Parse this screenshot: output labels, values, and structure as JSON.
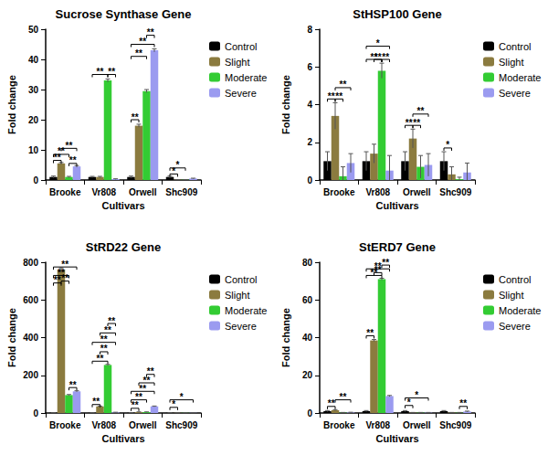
{
  "chart_data": [
    {
      "type": "bar",
      "title": "Sucrose Synthase Gene",
      "x_label": "Cultivars",
      "y_label": "Fold change",
      "categories": [
        "Brooke",
        "Vr808",
        "Orwell",
        "Shc909"
      ],
      "series": [
        {
          "name": "Control",
          "color": "#000000",
          "values": [
            1,
            1,
            1,
            1
          ],
          "errors": [
            0.3,
            0.2,
            0.3,
            0.3
          ]
        },
        {
          "name": "Slight",
          "color": "#8b7b3f",
          "values": [
            5.5,
            1,
            18,
            0.1
          ],
          "errors": [
            0.3,
            0.2,
            0.5,
            0.05
          ]
        },
        {
          "name": "Moderate",
          "color": "#33cc33",
          "values": [
            1,
            33,
            29.5,
            0.1
          ],
          "errors": [
            0.2,
            0.5,
            0.5,
            0.05
          ]
        },
        {
          "name": "Severe",
          "color": "#9b9bf0",
          "values": [
            4.5,
            0.3,
            43,
            0.5
          ],
          "errors": [
            0.3,
            0.1,
            0.5,
            0.1
          ]
        }
      ],
      "ylim": [
        0,
        50
      ],
      "yticks": [
        0,
        10,
        20,
        30,
        40,
        50
      ],
      "grid": false,
      "legend": "right",
      "annotations": [
        {
          "category": "Brooke",
          "from": "Control",
          "to": "Slight",
          "y": 6.5,
          "label": "**"
        },
        {
          "category": "Brooke",
          "from": "Control",
          "to": "Moderate",
          "y": 8.5,
          "label": "**"
        },
        {
          "category": "Brooke",
          "from": "Slight",
          "to": "Severe",
          "y": 10.5,
          "label": "**"
        },
        {
          "category": "Brooke",
          "from": "Moderate",
          "to": "Severe",
          "y": 5.5,
          "label": "**"
        },
        {
          "category": "Vr808",
          "from": "Control",
          "to": "Moderate",
          "y": 35,
          "label": "**"
        },
        {
          "category": "Vr808",
          "from": "Moderate",
          "to": "Severe",
          "y": 35,
          "label": "**"
        },
        {
          "category": "Orwell",
          "from": "Control",
          "to": "Slight",
          "y": 20,
          "label": "**"
        },
        {
          "category": "Orwell",
          "from": "Control",
          "to": "Moderate",
          "y": 41,
          "label": "**"
        },
        {
          "category": "Orwell",
          "from": "Control",
          "to": "Severe",
          "y": 45,
          "label": "**"
        },
        {
          "category": "Orwell",
          "from": "Moderate",
          "to": "Severe",
          "y": 48,
          "label": "**"
        },
        {
          "category": "Shc909",
          "from": "Control",
          "to": "Slight",
          "y": 2,
          "label": "*"
        },
        {
          "category": "Shc909",
          "from": "Control",
          "to": "Moderate",
          "y": 4,
          "label": "*"
        }
      ]
    },
    {
      "type": "bar",
      "title": "StHSP100 Gene",
      "x_label": "Cultivars",
      "y_label": "Fold change",
      "categories": [
        "Brooke",
        "Vr808",
        "Orwell",
        "Shc909"
      ],
      "series": [
        {
          "name": "Control",
          "color": "#000000",
          "values": [
            1,
            1,
            1,
            1
          ],
          "errors": [
            0.5,
            0.5,
            0.5,
            0.5
          ]
        },
        {
          "name": "Slight",
          "color": "#8b7b3f",
          "values": [
            3.4,
            1.4,
            2.2,
            0.3
          ],
          "errors": [
            0.7,
            0.5,
            0.5,
            0.4
          ]
        },
        {
          "name": "Moderate",
          "color": "#33cc33",
          "values": [
            0.2,
            5.8,
            0.7,
            0.05
          ],
          "errors": [
            0.5,
            0.4,
            0.6,
            0.1
          ]
        },
        {
          "name": "Severe",
          "color": "#9b9bf0",
          "values": [
            0.9,
            0.5,
            0.8,
            0.4
          ],
          "errors": [
            0.5,
            0.8,
            0.6,
            0.5
          ]
        }
      ],
      "ylim": [
        0,
        8
      ],
      "yticks": [
        0,
        2,
        4,
        6,
        8
      ],
      "grid": false,
      "legend": "right",
      "annotations": [
        {
          "category": "Brooke",
          "from": "Control",
          "to": "Slight",
          "y": 4.3,
          "label": "**"
        },
        {
          "category": "Brooke",
          "from": "Slight",
          "to": "Moderate",
          "y": 4.3,
          "label": "**"
        },
        {
          "category": "Brooke",
          "from": "Slight",
          "to": "Severe",
          "y": 4.9,
          "label": "**"
        },
        {
          "category": "Vr808",
          "from": "Control",
          "to": "Moderate",
          "y": 6.4,
          "label": "**"
        },
        {
          "category": "Vr808",
          "from": "Slight",
          "to": "Moderate",
          "y": 6.4,
          "label": "**"
        },
        {
          "category": "Vr808",
          "from": "Moderate",
          "to": "Severe",
          "y": 6.4,
          "label": "**"
        },
        {
          "category": "Vr808",
          "from": "Control",
          "to": "Severe",
          "y": 7.1,
          "label": "*"
        },
        {
          "category": "Orwell",
          "from": "Control",
          "to": "Slight",
          "y": 2.9,
          "label": "**"
        },
        {
          "category": "Orwell",
          "from": "Slight",
          "to": "Moderate",
          "y": 2.9,
          "label": "**"
        },
        {
          "category": "Orwell",
          "from": "Slight",
          "to": "Severe",
          "y": 3.5,
          "label": "**"
        },
        {
          "category": "Shc909",
          "from": "Control",
          "to": "Slight",
          "y": 1.7,
          "label": "*"
        }
      ]
    },
    {
      "type": "bar",
      "title": "StRD22 Gene",
      "x_label": "Cultivars",
      "y_label": "Fold change",
      "categories": [
        "Brooke",
        "Vr808",
        "Orwell",
        "Shc909"
      ],
      "series": [
        {
          "name": "Control",
          "color": "#000000",
          "values": [
            1,
            1,
            1,
            1
          ],
          "errors": [
            1,
            1,
            1,
            1
          ]
        },
        {
          "name": "Slight",
          "color": "#8b7b3f",
          "values": [
            760,
            35,
            5,
            1
          ],
          "errors": [
            10,
            2,
            1,
            0.5
          ]
        },
        {
          "name": "Moderate",
          "color": "#33cc33",
          "values": [
            95,
            255,
            5,
            1
          ],
          "errors": [
            3,
            3,
            1,
            0.5
          ]
        },
        {
          "name": "Severe",
          "color": "#9b9bf0",
          "values": [
            115,
            3,
            35,
            1
          ],
          "errors": [
            3,
            1,
            2,
            0.5
          ]
        }
      ],
      "ylim": [
        0,
        800
      ],
      "yticks": [
        0,
        200,
        400,
        600,
        800
      ],
      "grid": false,
      "legend": "right",
      "annotations": [
        {
          "category": "Brooke",
          "from": "Control",
          "to": "Slight",
          "y": 690,
          "label": "**"
        },
        {
          "category": "Brooke",
          "from": "Control",
          "to": "Moderate",
          "y": 730,
          "label": "**"
        },
        {
          "category": "Brooke",
          "from": "Slight",
          "to": "Moderate",
          "y": 700,
          "label": "**"
        },
        {
          "category": "Brooke",
          "from": "Control",
          "to": "Severe",
          "y": 775,
          "label": "**"
        },
        {
          "category": "Brooke",
          "from": "Moderate",
          "to": "Severe",
          "y": 135,
          "label": "**"
        },
        {
          "category": "Vr808",
          "from": "Control",
          "to": "Slight",
          "y": 45,
          "label": "**"
        },
        {
          "category": "Vr808",
          "from": "Control",
          "to": "Moderate",
          "y": 275,
          "label": "**"
        },
        {
          "category": "Vr808",
          "from": "Slight",
          "to": "Moderate",
          "y": 325,
          "label": "**"
        },
        {
          "category": "Vr808",
          "from": "Control",
          "to": "Severe",
          "y": 375,
          "label": "**"
        },
        {
          "category": "Vr808",
          "from": "Slight",
          "to": "Severe",
          "y": 425,
          "label": "**"
        },
        {
          "category": "Vr808",
          "from": "Moderate",
          "to": "Severe",
          "y": 475,
          "label": "**"
        },
        {
          "category": "Orwell",
          "from": "Control",
          "to": "Slight",
          "y": 25,
          "label": "**"
        },
        {
          "category": "Orwell",
          "from": "Control",
          "to": "Moderate",
          "y": 70,
          "label": "**"
        },
        {
          "category": "Orwell",
          "from": "Control",
          "to": "Severe",
          "y": 115,
          "label": "**"
        },
        {
          "category": "Orwell",
          "from": "Slight",
          "to": "Severe",
          "y": 160,
          "label": "**"
        },
        {
          "category": "Orwell",
          "from": "Moderate",
          "to": "Severe",
          "y": 205,
          "label": "**"
        },
        {
          "category": "Shc909",
          "from": "Control",
          "to": "Slight",
          "y": 30,
          "label": "*"
        },
        {
          "category": "Shc909",
          "from": "Control",
          "to": "Severe",
          "y": 70,
          "label": "*"
        }
      ]
    },
    {
      "type": "bar",
      "title": "StERD7 Gene",
      "x_label": "Cultivars",
      "y_label": "Fold change",
      "categories": [
        "Brooke",
        "Vr808",
        "Orwell",
        "Shc909"
      ],
      "series": [
        {
          "name": "Control",
          "color": "#000000",
          "values": [
            1,
            1,
            1,
            1
          ],
          "errors": [
            0.3,
            0.3,
            0.3,
            0.3
          ]
        },
        {
          "name": "Slight",
          "color": "#8b7b3f",
          "values": [
            1.5,
            38.5,
            0.2,
            0.2
          ],
          "errors": [
            0.3,
            0.5,
            0.1,
            0.1
          ]
        },
        {
          "name": "Moderate",
          "color": "#33cc33",
          "values": [
            0.2,
            71,
            0.2,
            0.2
          ],
          "errors": [
            0.1,
            0.5,
            0.1,
            0.1
          ]
        },
        {
          "name": "Severe",
          "color": "#9b9bf0",
          "values": [
            0.3,
            9,
            0.2,
            0.8
          ],
          "errors": [
            0.1,
            0.3,
            0.1,
            0.2
          ]
        }
      ],
      "ylim": [
        0,
        80
      ],
      "yticks": [
        0,
        20,
        40,
        60,
        80
      ],
      "grid": false,
      "legend": "right",
      "annotations": [
        {
          "category": "Brooke",
          "from": "Control",
          "to": "Slight",
          "y": 3.5,
          "label": "**"
        },
        {
          "category": "Brooke",
          "from": "Slight",
          "to": "Severe",
          "y": 7,
          "label": "**"
        },
        {
          "category": "Vr808",
          "from": "Control",
          "to": "Slight",
          "y": 41,
          "label": "**"
        },
        {
          "category": "Vr808",
          "from": "Control",
          "to": "Moderate",
          "y": 73,
          "label": "**"
        },
        {
          "category": "Vr808",
          "from": "Slight",
          "to": "Moderate",
          "y": 74.5,
          "label": "**"
        },
        {
          "category": "Vr808",
          "from": "Control",
          "to": "Severe",
          "y": 76.5,
          "label": "**"
        },
        {
          "category": "Vr808",
          "from": "Moderate",
          "to": "Severe",
          "y": 78.5,
          "label": "**"
        },
        {
          "category": "Orwell",
          "from": "Control",
          "to": "Slight",
          "y": 4,
          "label": "*"
        },
        {
          "category": "Orwell",
          "from": "Control",
          "to": "Severe",
          "y": 8,
          "label": "*"
        },
        {
          "category": "Shc909",
          "from": "Moderate",
          "to": "Severe",
          "y": 3.5,
          "label": "**"
        }
      ]
    }
  ]
}
